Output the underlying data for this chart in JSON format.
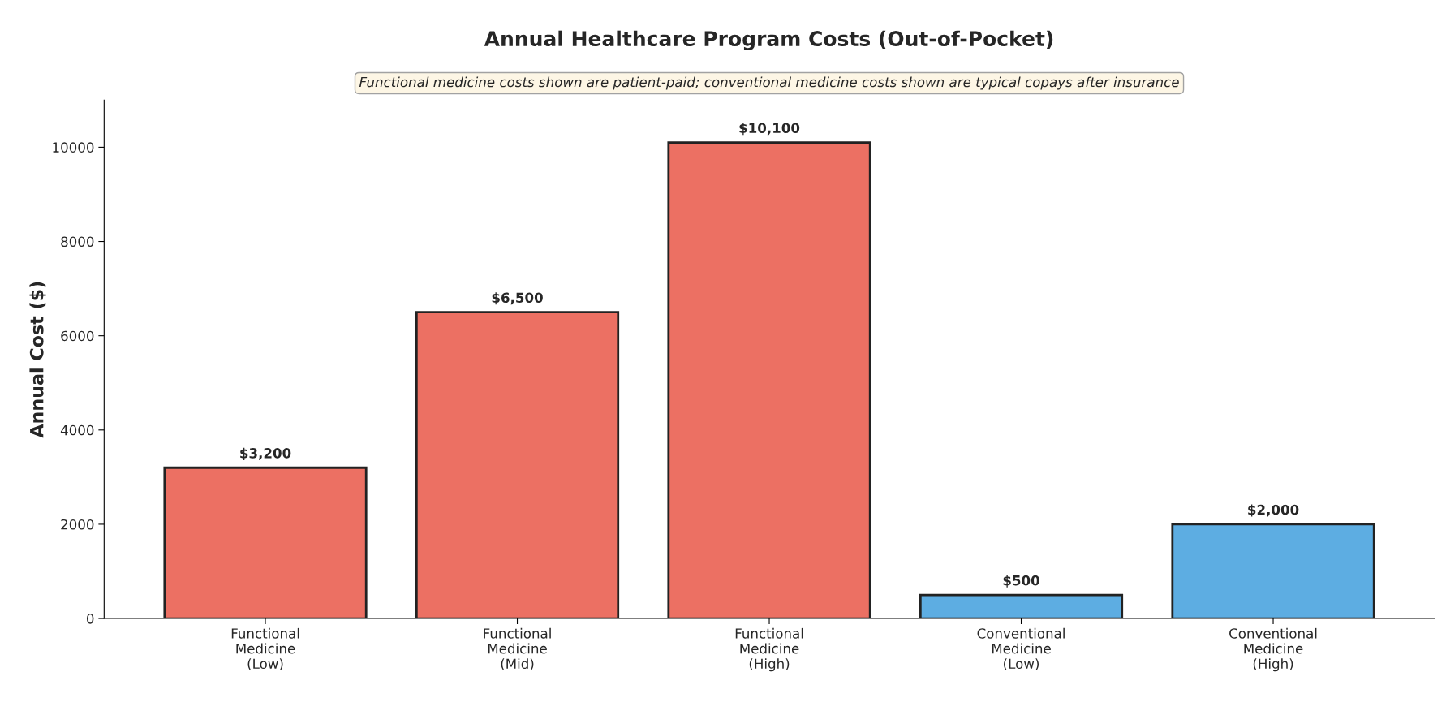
{
  "chart_data": {
    "type": "bar",
    "title": "Annual Healthcare Program Costs (Out-of-Pocket)",
    "ylabel": "Annual Cost ($)",
    "categories": [
      "Functional\nMedicine\n(Low)",
      "Functional\nMedicine\n(Mid)",
      "Functional\nMedicine\n(High)",
      "Conventional\nMedicine\n(Low)",
      "Conventional\nMedicine\n(High)"
    ],
    "values": [
      3200,
      6500,
      10100,
      500,
      2000
    ],
    "colors": [
      "#ec7063",
      "#ec7063",
      "#ec7063",
      "#5dade2",
      "#5dade2"
    ],
    "value_labels": [
      "$3,200",
      "$6,500",
      "$10,100",
      "$500",
      "$2,000"
    ],
    "ylim": [
      0,
      11000
    ],
    "yticks": [
      0,
      2000,
      4000,
      6000,
      8000,
      10000
    ],
    "grid": false,
    "legend": false,
    "annotations": [
      "Functional medicine costs shown are patient-paid; conventional medicine costs shown are typical copays after insurance"
    ]
  }
}
